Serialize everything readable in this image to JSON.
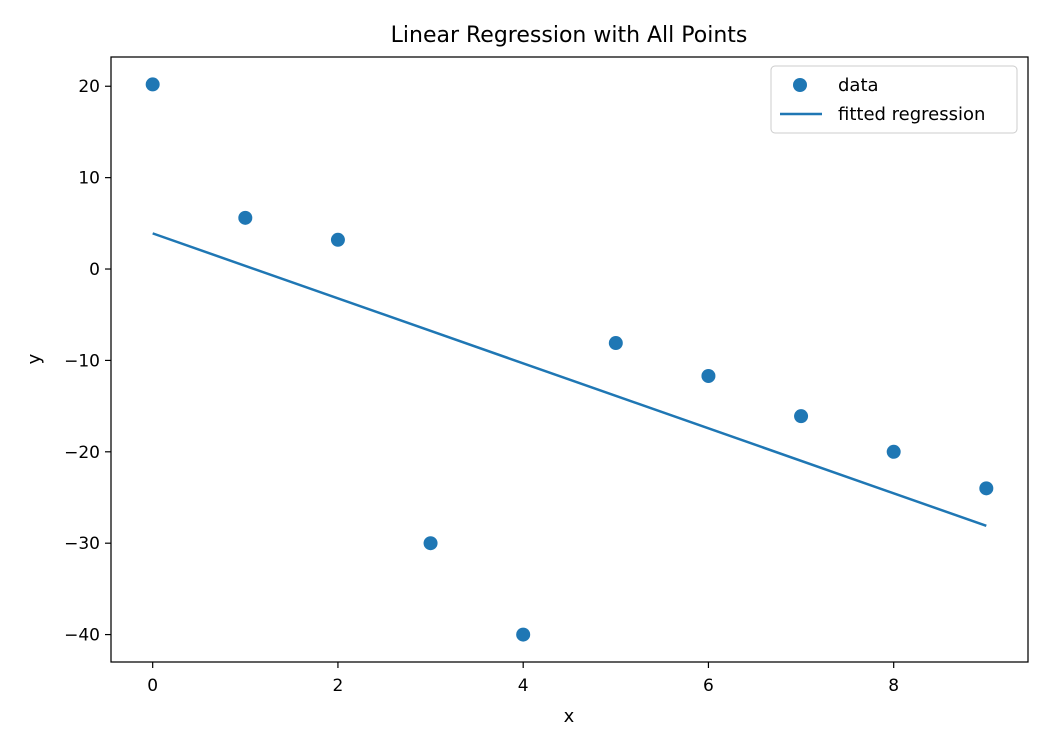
{
  "chart_data": {
    "type": "scatter",
    "title": "Linear Regression with All Points",
    "xlabel": "x",
    "ylabel": "y",
    "xlim": [
      -0.45,
      9.45
    ],
    "ylim": [
      -43.0,
      23.2
    ],
    "xticks": [
      0,
      2,
      4,
      6,
      8
    ],
    "xtick_labels": [
      "0",
      "2",
      "4",
      "6",
      "8"
    ],
    "yticks": [
      20,
      10,
      0,
      -10,
      -20,
      -30,
      -40
    ],
    "ytick_labels": [
      "20",
      "10",
      "0",
      "−10",
      "−20",
      "−30",
      "−40"
    ],
    "grid": false,
    "legend_position": "top-right",
    "colors": {
      "series": "#1f77b4",
      "axes": "#000000",
      "background": "#ffffff"
    },
    "series": [
      {
        "name": "data",
        "kind": "scatter",
        "x": [
          0,
          1,
          2,
          3,
          4,
          5,
          6,
          7,
          8,
          9
        ],
        "y": [
          20.2,
          5.6,
          3.2,
          -30.0,
          -40.0,
          -8.1,
          -11.7,
          -16.1,
          -20.0,
          -24.0
        ]
      },
      {
        "name": "fitted regression",
        "kind": "line",
        "x": [
          0,
          9
        ],
        "y": [
          3.9,
          -28.1
        ]
      }
    ]
  }
}
